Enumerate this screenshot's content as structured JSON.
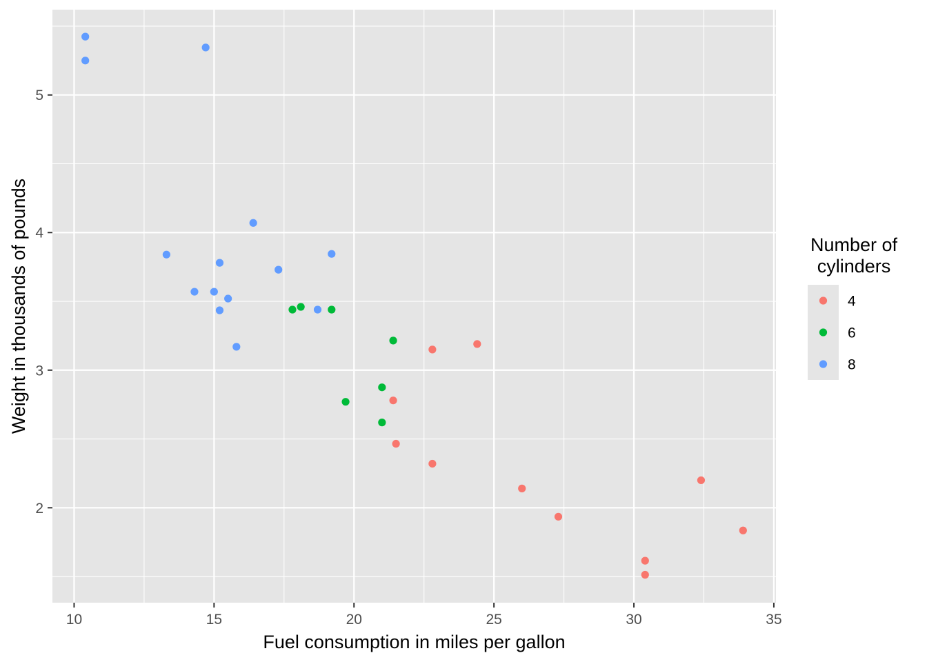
{
  "chart_data": {
    "type": "scatter",
    "xlabel": "Fuel consumption in miles per gallon",
    "ylabel": "Weight in thousands of pounds",
    "xlim": [
      9.225,
      35.075
    ],
    "ylim": [
      1.31,
      5.62
    ],
    "x_ticks": [
      10,
      15,
      20,
      25,
      30,
      35
    ],
    "y_ticks": [
      2,
      3,
      4,
      5
    ],
    "x_minor_ticks": [
      12.5,
      17.5,
      22.5,
      27.5,
      32.5
    ],
    "y_minor_ticks": [
      1.5,
      2.5,
      3.5,
      4.5,
      5.5
    ],
    "x_tick_labels": [
      "10",
      "15",
      "20",
      "25",
      "30",
      "35"
    ],
    "y_tick_labels": [
      "2",
      "3",
      "4",
      "5"
    ],
    "grid": true,
    "panel_background": "#e5e5e5",
    "grid_color": "#ffffff",
    "legend": {
      "title": "Number of\ncylinders",
      "position": "right",
      "entries": [
        {
          "label": "4",
          "color": "#F8766D"
        },
        {
          "label": "6",
          "color": "#00BA38"
        },
        {
          "label": "8",
          "color": "#619CFF"
        }
      ]
    },
    "series": [
      {
        "name": "4",
        "color": "#F8766D",
        "points": [
          [
            22.8,
            2.32
          ],
          [
            24.4,
            3.19
          ],
          [
            22.8,
            3.15
          ],
          [
            32.4,
            2.2
          ],
          [
            30.4,
            1.615
          ],
          [
            33.9,
            1.835
          ],
          [
            21.5,
            2.465
          ],
          [
            27.3,
            1.935
          ],
          [
            26.0,
            2.14
          ],
          [
            30.4,
            1.513
          ],
          [
            21.4,
            2.78
          ]
        ]
      },
      {
        "name": "6",
        "color": "#00BA38",
        "points": [
          [
            21.0,
            2.62
          ],
          [
            21.0,
            2.875
          ],
          [
            21.4,
            3.215
          ],
          [
            18.1,
            3.46
          ],
          [
            19.2,
            3.44
          ],
          [
            17.8,
            3.44
          ],
          [
            19.7,
            2.77
          ]
        ]
      },
      {
        "name": "8",
        "color": "#619CFF",
        "points": [
          [
            18.7,
            3.44
          ],
          [
            14.3,
            3.57
          ],
          [
            16.4,
            4.07
          ],
          [
            17.3,
            3.73
          ],
          [
            15.2,
            3.78
          ],
          [
            10.4,
            5.25
          ],
          [
            10.4,
            5.424
          ],
          [
            14.7,
            5.345
          ],
          [
            15.5,
            3.52
          ],
          [
            15.2,
            3.435
          ],
          [
            13.3,
            3.84
          ],
          [
            19.2,
            3.845
          ],
          [
            15.8,
            3.17
          ],
          [
            15.0,
            3.57
          ]
        ]
      }
    ]
  }
}
